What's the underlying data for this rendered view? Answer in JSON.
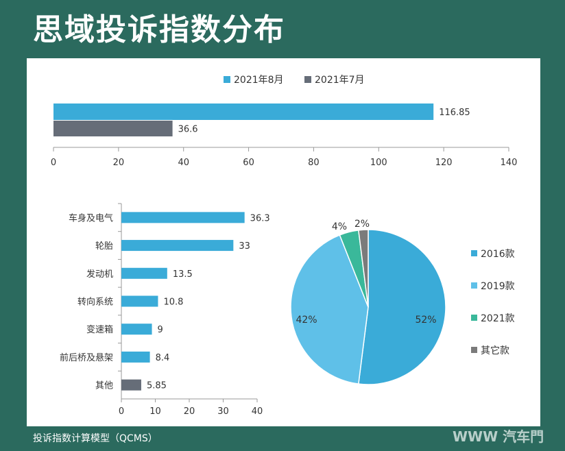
{
  "page": {
    "title": "思域投诉指数分布",
    "footer": "投诉指数计算模型（QCMS）",
    "watermark": "WWW 汽车門"
  },
  "colors": {
    "background": "#2b6a5e",
    "aug": "#3aabd8",
    "jul": "#666d78",
    "other_bar": "#666d78"
  },
  "chart_data": [
    {
      "type": "bar",
      "orientation": "horizontal",
      "categories": [
        ""
      ],
      "series": [
        {
          "name": "2021年8月",
          "values": [
            116.85
          ],
          "color": "#3aabd8"
        },
        {
          "name": "2021年7月",
          "values": [
            36.6
          ],
          "color": "#666d78"
        }
      ],
      "data_labels": [
        "116.85",
        "36.6"
      ],
      "xlim": [
        0,
        140
      ],
      "x_ticks": [
        0,
        20,
        40,
        60,
        80,
        100,
        120,
        140
      ],
      "legend": "top"
    },
    {
      "type": "bar",
      "orientation": "horizontal",
      "categories": [
        "车身及电气",
        "轮胎",
        "发动机",
        "转向系统",
        "变速箱",
        "前后桥及悬架",
        "其他"
      ],
      "values": [
        36.3,
        33,
        13.5,
        10.8,
        9,
        8.4,
        5.85
      ],
      "data_labels": [
        "36.3",
        "33",
        "13.5",
        "10.8",
        "9",
        "8.4",
        "5.85"
      ],
      "colors": [
        "#3aabd8",
        "#3aabd8",
        "#3aabd8",
        "#3aabd8",
        "#3aabd8",
        "#3aabd8",
        "#666d78"
      ],
      "xlim": [
        0,
        40
      ],
      "x_ticks": [
        0,
        10,
        20,
        30,
        40
      ]
    },
    {
      "type": "pie",
      "labels": [
        "2016款",
        "2019款",
        "2021款",
        "其它款"
      ],
      "values": [
        52,
        42,
        4,
        2
      ],
      "data_labels": [
        "52%",
        "42%",
        "4%",
        "2%"
      ],
      "colors": [
        "#3aabd8",
        "#5fc0e8",
        "#3ab89a",
        "#7b7b7b"
      ],
      "legend": "right"
    }
  ]
}
